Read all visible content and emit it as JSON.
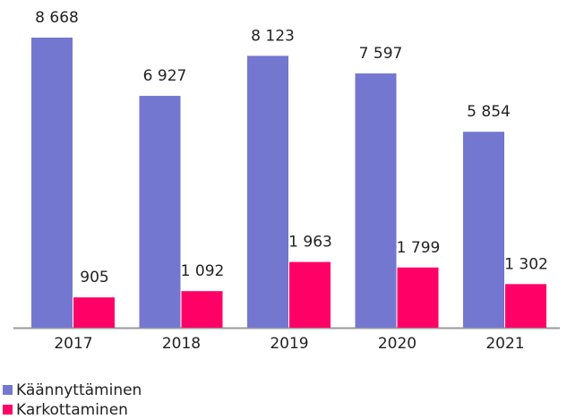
{
  "chart_data": {
    "type": "bar",
    "categories": [
      "2017",
      "2018",
      "2019",
      "2020",
      "2021"
    ],
    "series": [
      {
        "name": "Käännyttäminen",
        "color": "#7477d0",
        "values": [
          8668,
          6927,
          8123,
          7597,
          5854
        ],
        "value_labels": [
          "8 668",
          "6 927",
          "8 123",
          "7 597",
          "5 854"
        ]
      },
      {
        "name": "Karkottaminen",
        "color": "#ff0066",
        "values": [
          905,
          1092,
          1963,
          1799,
          1302
        ],
        "value_labels": [
          "905",
          "1 092",
          "1 963",
          "1 799",
          "1 302"
        ]
      }
    ],
    "legend": "bottom-left"
  }
}
